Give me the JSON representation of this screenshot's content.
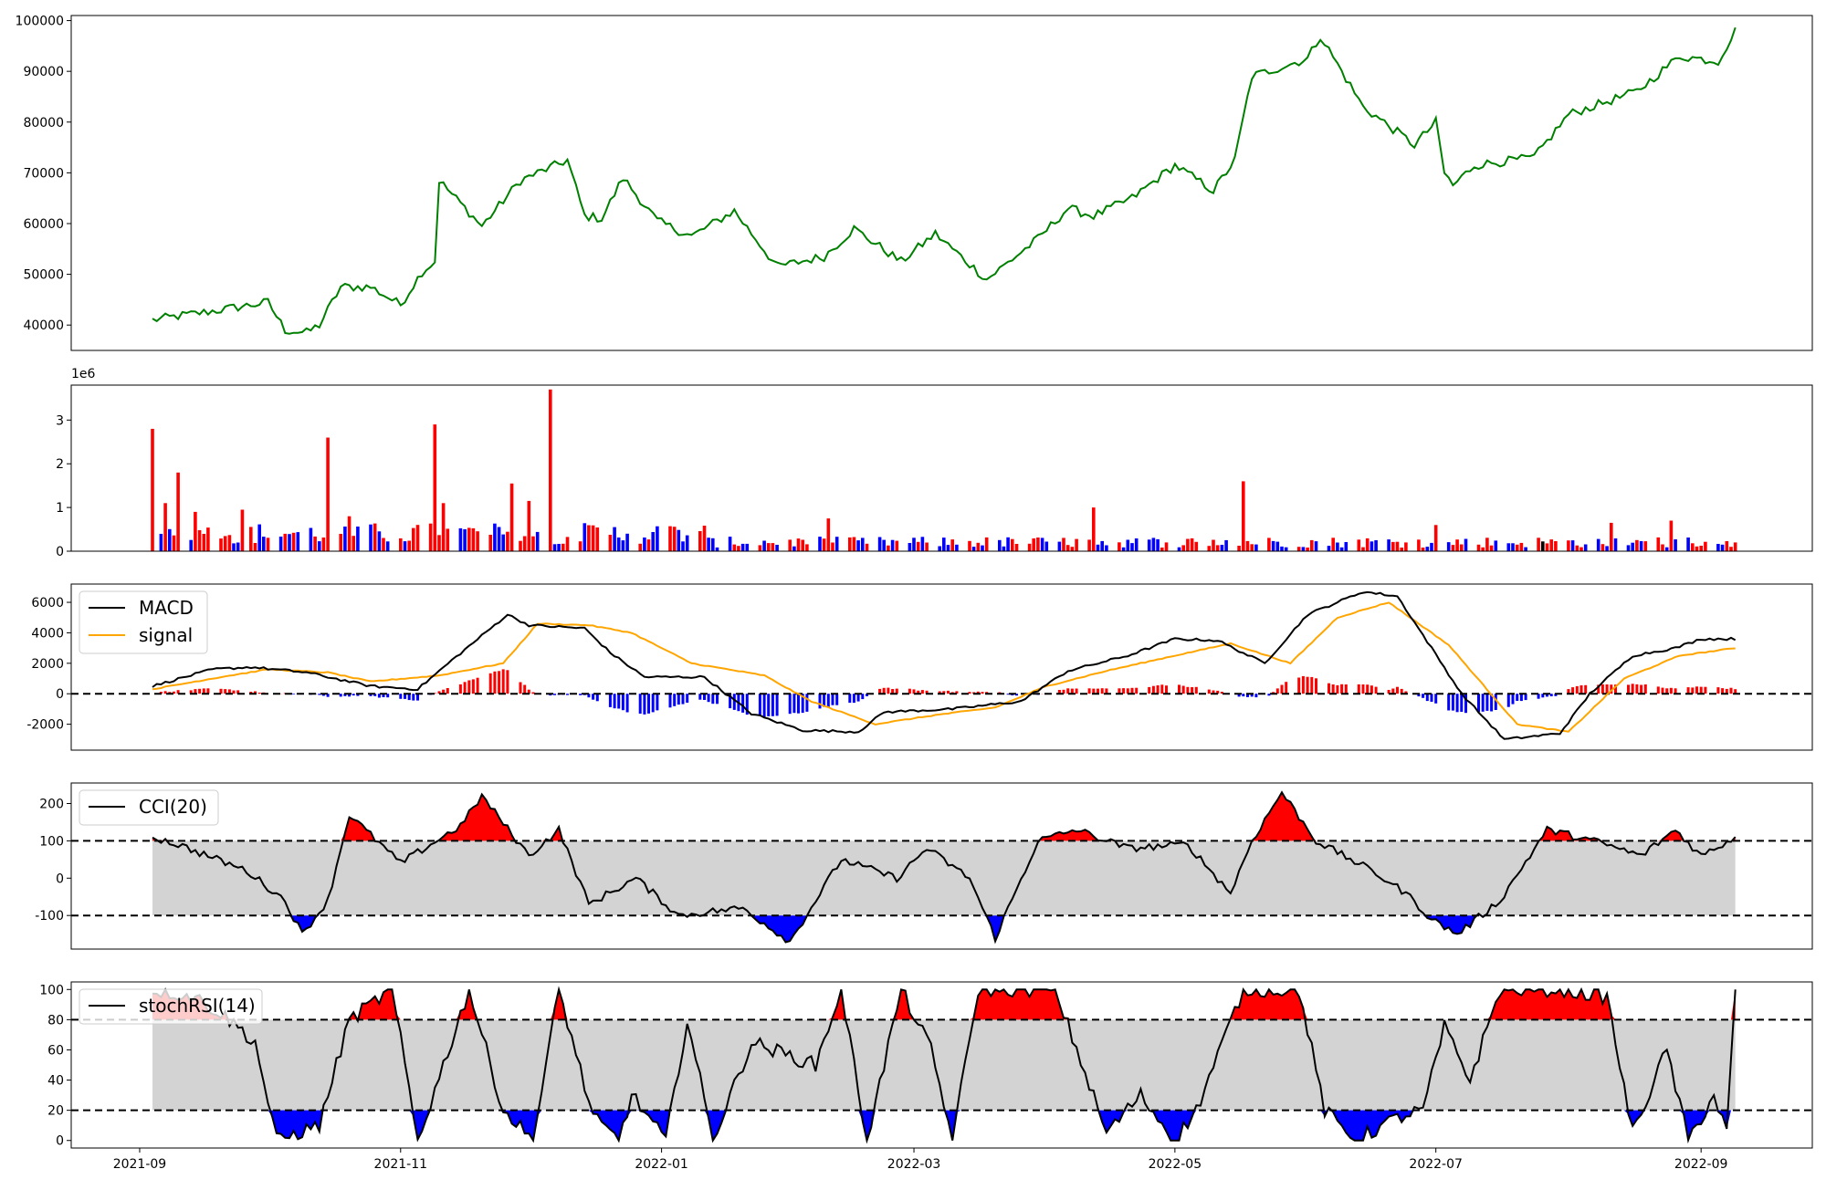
{
  "chart_data": [
    {
      "type": "line",
      "panel": "price",
      "color": "#008000",
      "ylim": [
        35000,
        101000
      ],
      "yticks": [
        "40000",
        "50000",
        "60000",
        "70000",
        "80000",
        "90000",
        "100000"
      ],
      "x_range": [
        "2021-09-04",
        "2022-09-09"
      ],
      "keypoints": [
        [
          "2021-09-04",
          41000
        ],
        [
          "2021-09-20",
          43000
        ],
        [
          "2021-10-01",
          44500
        ],
        [
          "2021-10-05",
          39000
        ],
        [
          "2021-10-10",
          38500
        ],
        [
          "2021-10-13",
          40000
        ],
        [
          "2021-10-18",
          47500
        ],
        [
          "2021-10-25",
          47500
        ],
        [
          "2021-11-01",
          44000
        ],
        [
          "2021-11-06",
          50500
        ],
        [
          "2021-11-09",
          52500
        ],
        [
          "2021-11-10",
          68500
        ],
        [
          "2021-11-20",
          59500
        ],
        [
          "2021-11-29",
          68500
        ],
        [
          "2021-12-10",
          72500
        ],
        [
          "2021-12-14",
          61500
        ],
        [
          "2021-12-18",
          61000
        ],
        [
          "2021-12-23",
          69000
        ],
        [
          "2021-12-31",
          60500
        ],
        [
          "2022-01-08",
          57500
        ],
        [
          "2022-01-18",
          62500
        ],
        [
          "2022-01-28",
          51500
        ],
        [
          "2022-02-08",
          53500
        ],
        [
          "2022-02-15",
          59000
        ],
        [
          "2022-02-26",
          52500
        ],
        [
          "2022-03-06",
          58000
        ],
        [
          "2022-03-18",
          49000
        ],
        [
          "2022-03-30",
          57000
        ],
        [
          "2022-04-06",
          63000
        ],
        [
          "2022-04-12",
          61500
        ],
        [
          "2022-04-21",
          65000
        ],
        [
          "2022-05-01",
          71500
        ],
        [
          "2022-05-10",
          66500
        ],
        [
          "2022-05-15",
          72500
        ],
        [
          "2022-05-19",
          89000
        ],
        [
          "2022-06-01",
          92500
        ],
        [
          "2022-06-04",
          97000
        ],
        [
          "2022-06-14",
          83000
        ],
        [
          "2022-06-26",
          75500
        ],
        [
          "2022-07-01",
          80000
        ],
        [
          "2022-07-03",
          70000
        ],
        [
          "2022-07-05",
          67500
        ],
        [
          "2022-07-10",
          71500
        ],
        [
          "2022-07-24",
          73000
        ],
        [
          "2022-08-01",
          81500
        ],
        [
          "2022-08-17",
          86000
        ],
        [
          "2022-08-27",
          93000
        ],
        [
          "2022-09-05",
          92000
        ],
        [
          "2022-09-09",
          98000
        ]
      ]
    },
    {
      "type": "bar",
      "panel": "volume",
      "scale_label": "1e6",
      "ylim": [
        0,
        3800000
      ],
      "yticks": [
        "0",
        "1",
        "2",
        "3"
      ],
      "colors": {
        "up": "#ff0000",
        "down": "#0000ff",
        "flat": "#000000"
      },
      "keypoints": [
        [
          "2021-09-04",
          2800000
        ],
        [
          "2021-09-07",
          1100000
        ],
        [
          "2021-09-10",
          1800000
        ],
        [
          "2021-09-14",
          900000
        ],
        [
          "2021-09-25",
          950000
        ],
        [
          "2021-10-15",
          2600000
        ],
        [
          "2021-10-20",
          800000
        ],
        [
          "2021-11-09",
          2900000
        ],
        [
          "2021-11-11",
          1100000
        ],
        [
          "2021-11-27",
          1550000
        ],
        [
          "2021-12-01",
          1150000
        ],
        [
          "2021-12-06",
          3700000
        ],
        [
          "2022-02-09",
          750000
        ],
        [
          "2022-04-12",
          1000000
        ],
        [
          "2022-05-17",
          1600000
        ],
        [
          "2022-07-01",
          600000
        ],
        [
          "2022-08-11",
          650000
        ],
        [
          "2022-08-25",
          700000
        ],
        [
          "2022-09-09",
          200000
        ]
      ]
    },
    {
      "type": "line",
      "panel": "macd",
      "ylim": [
        -3700,
        7200
      ],
      "yticks": [
        "-2000",
        "0",
        "2000",
        "4000",
        "6000"
      ],
      "legend": [
        "MACD",
        "signal"
      ],
      "series": [
        {
          "name": "MACD",
          "color": "#000000",
          "keypoints": [
            [
              "2021-09-04",
              500
            ],
            [
              "2021-09-18",
              1600
            ],
            [
              "2021-09-27",
              1750
            ],
            [
              "2021-10-10",
              1400
            ],
            [
              "2021-10-25",
              500
            ],
            [
              "2021-11-05",
              300
            ],
            [
              "2021-11-13",
              2200
            ],
            [
              "2021-11-26",
              5200
            ],
            [
              "2021-12-01",
              4500
            ],
            [
              "2021-12-14",
              4300
            ],
            [
              "2021-12-20",
              2700
            ],
            [
              "2021-12-28",
              1100
            ],
            [
              "2022-01-11",
              1100
            ],
            [
              "2022-01-22",
              -1300
            ],
            [
              "2022-02-03",
              -2400
            ],
            [
              "2022-02-16",
              -2500
            ],
            [
              "2022-02-22",
              -1200
            ],
            [
              "2022-03-10",
              -1000
            ],
            [
              "2022-03-26",
              -500
            ],
            [
              "2022-04-06",
              1500
            ],
            [
              "2022-04-20",
              2500
            ],
            [
              "2022-05-01",
              3600
            ],
            [
              "2022-05-11",
              3500
            ],
            [
              "2022-05-22",
              2000
            ],
            [
              "2022-06-01",
              5200
            ],
            [
              "2022-06-14",
              6700
            ],
            [
              "2022-06-22",
              6400
            ],
            [
              "2022-06-30",
              3000
            ],
            [
              "2022-07-07",
              0
            ],
            [
              "2022-07-17",
              -3000
            ],
            [
              "2022-07-30",
              -2600
            ],
            [
              "2022-08-06",
              0
            ],
            [
              "2022-08-16",
              2500
            ],
            [
              "2022-08-26",
              3000
            ],
            [
              "2022-09-01",
              3600
            ],
            [
              "2022-09-09",
              3600
            ]
          ]
        },
        {
          "name": "signal",
          "color": "#ffa500",
          "keypoints": [
            [
              "2021-09-04",
              300
            ],
            [
              "2021-09-20",
              1100
            ],
            [
              "2021-10-01",
              1600
            ],
            [
              "2021-10-15",
              1400
            ],
            [
              "2021-10-25",
              800
            ],
            [
              "2021-11-10",
              1200
            ],
            [
              "2021-11-25",
              2000
            ],
            [
              "2021-12-03",
              4600
            ],
            [
              "2021-12-15",
              4500
            ],
            [
              "2021-12-25",
              4000
            ],
            [
              "2022-01-08",
              2000
            ],
            [
              "2022-01-25",
              1200
            ],
            [
              "2022-02-05",
              -500
            ],
            [
              "2022-02-20",
              -2000
            ],
            [
              "2022-03-06",
              -1400
            ],
            [
              "2022-03-20",
              -900
            ],
            [
              "2022-04-01",
              500
            ],
            [
              "2022-04-15",
              1500
            ],
            [
              "2022-05-01",
              2500
            ],
            [
              "2022-05-14",
              3300
            ],
            [
              "2022-05-28",
              2000
            ],
            [
              "2022-06-08",
              5000
            ],
            [
              "2022-06-20",
              6000
            ],
            [
              "2022-07-04",
              3200
            ],
            [
              "2022-07-20",
              -2000
            ],
            [
              "2022-08-01",
              -2500
            ],
            [
              "2022-08-14",
              1000
            ],
            [
              "2022-08-27",
              2500
            ],
            [
              "2022-09-09",
              3000
            ]
          ]
        }
      ]
    },
    {
      "type": "area",
      "panel": "cci",
      "ylim": [
        -190,
        255
      ],
      "yticks": [
        "-100",
        "0",
        "100",
        "200"
      ],
      "bands": [
        -100,
        100
      ],
      "legend": [
        "CCI(20)"
      ],
      "colors": {
        "band": "#d3d3d3",
        "over": "#ff0000",
        "under": "#0000ff",
        "line": "#000000"
      },
      "keypoints": [
        [
          "2021-09-04",
          110
        ],
        [
          "2021-09-10",
          90
        ],
        [
          "2021-09-26",
          20
        ],
        [
          "2021-10-05",
          -60
        ],
        [
          "2021-10-09",
          -150
        ],
        [
          "2021-10-15",
          -60
        ],
        [
          "2021-10-20",
          170
        ],
        [
          "2021-11-01",
          40
        ],
        [
          "2021-11-15",
          140
        ],
        [
          "2021-11-20",
          220
        ],
        [
          "2021-12-01",
          60
        ],
        [
          "2021-12-08",
          130
        ],
        [
          "2021-12-15",
          -70
        ],
        [
          "2021-12-26",
          0
        ],
        [
          "2022-01-05",
          -100
        ],
        [
          "2022-01-12",
          -90
        ],
        [
          "2022-01-20",
          -80
        ],
        [
          "2022-01-31",
          -170
        ],
        [
          "2022-02-12",
          50
        ],
        [
          "2022-02-25",
          0
        ],
        [
          "2022-03-04",
          80
        ],
        [
          "2022-03-14",
          0
        ],
        [
          "2022-03-20",
          -160
        ],
        [
          "2022-03-30",
          100
        ],
        [
          "2022-04-08",
          130
        ],
        [
          "2022-04-20",
          80
        ],
        [
          "2022-05-04",
          90
        ],
        [
          "2022-05-14",
          -40
        ],
        [
          "2022-05-19",
          100
        ],
        [
          "2022-05-26",
          230
        ],
        [
          "2022-06-03",
          100
        ],
        [
          "2022-06-16",
          20
        ],
        [
          "2022-06-24",
          -40
        ],
        [
          "2022-06-30",
          -110
        ],
        [
          "2022-07-06",
          -150
        ],
        [
          "2022-07-16",
          -60
        ],
        [
          "2022-07-27",
          130
        ],
        [
          "2022-08-07",
          100
        ],
        [
          "2022-08-18",
          60
        ],
        [
          "2022-08-26",
          130
        ],
        [
          "2022-09-01",
          60
        ],
        [
          "2022-09-09",
          110
        ]
      ]
    },
    {
      "type": "area",
      "panel": "stochrsi",
      "ylim": [
        -5,
        105
      ],
      "yticks": [
        "0",
        "20",
        "40",
        "60",
        "80",
        "100"
      ],
      "bands": [
        20,
        80
      ],
      "legend": [
        "stochRSI(14)"
      ],
      "colors": {
        "band": "#d3d3d3",
        "over": "#ff0000",
        "under": "#0000ff",
        "line": "#000000"
      },
      "keypoints": [
        [
          "2021-09-04",
          100
        ],
        [
          "2021-09-14",
          95
        ],
        [
          "2021-09-22",
          80
        ],
        [
          "2021-09-28",
          65
        ],
        [
          "2021-10-03",
          0
        ],
        [
          "2021-10-13",
          10
        ],
        [
          "2021-10-20",
          80
        ],
        [
          "2021-10-30",
          100
        ],
        [
          "2021-11-05",
          0
        ],
        [
          "2021-11-11",
          50
        ],
        [
          "2021-11-17",
          100
        ],
        [
          "2021-11-25",
          20
        ],
        [
          "2021-12-02",
          0
        ],
        [
          "2021-12-08",
          100
        ],
        [
          "2021-12-16",
          15
        ],
        [
          "2021-12-22",
          0
        ],
        [
          "2021-12-25",
          30
        ],
        [
          "2022-01-02",
          0
        ],
        [
          "2022-01-07",
          80
        ],
        [
          "2022-01-13",
          0
        ],
        [
          "2022-01-22",
          65
        ],
        [
          "2022-02-06",
          50
        ],
        [
          "2022-02-12",
          100
        ],
        [
          "2022-02-18",
          0
        ],
        [
          "2022-02-26",
          100
        ],
        [
          "2022-03-05",
          60
        ],
        [
          "2022-03-10",
          0
        ],
        [
          "2022-03-16",
          100
        ],
        [
          "2022-03-24",
          100
        ],
        [
          "2022-04-03",
          100
        ],
        [
          "2022-04-15",
          5
        ],
        [
          "2022-04-23",
          30
        ],
        [
          "2022-05-01",
          0
        ],
        [
          "2022-05-06",
          20
        ],
        [
          "2022-05-17",
          100
        ],
        [
          "2022-05-30",
          100
        ],
        [
          "2022-06-05",
          20
        ],
        [
          "2022-06-12",
          0
        ],
        [
          "2022-06-22",
          15
        ],
        [
          "2022-06-28",
          20
        ],
        [
          "2022-07-03",
          75
        ],
        [
          "2022-07-09",
          40
        ],
        [
          "2022-07-16",
          100
        ],
        [
          "2022-07-23",
          100
        ],
        [
          "2022-07-30",
          100
        ],
        [
          "2022-08-10",
          95
        ],
        [
          "2022-08-16",
          5
        ],
        [
          "2022-08-24",
          60
        ],
        [
          "2022-08-29",
          0
        ],
        [
          "2022-09-04",
          30
        ],
        [
          "2022-09-07",
          5
        ],
        [
          "2022-09-09",
          100
        ]
      ]
    }
  ],
  "x_axis": {
    "ticks": [
      {
        "date": "2021-09-01",
        "label": "2021-09"
      },
      {
        "date": "2021-11-01",
        "label": "2021-11"
      },
      {
        "date": "2022-01-01",
        "label": "2022-01"
      },
      {
        "date": "2022-03-01",
        "label": "2022-03"
      },
      {
        "date": "2022-05-01",
        "label": "2022-05"
      },
      {
        "date": "2022-07-01",
        "label": "2022-07"
      },
      {
        "date": "2022-09-01",
        "label": "2022-09"
      }
    ],
    "range": [
      "2021-08-16",
      "2022-09-27"
    ]
  }
}
